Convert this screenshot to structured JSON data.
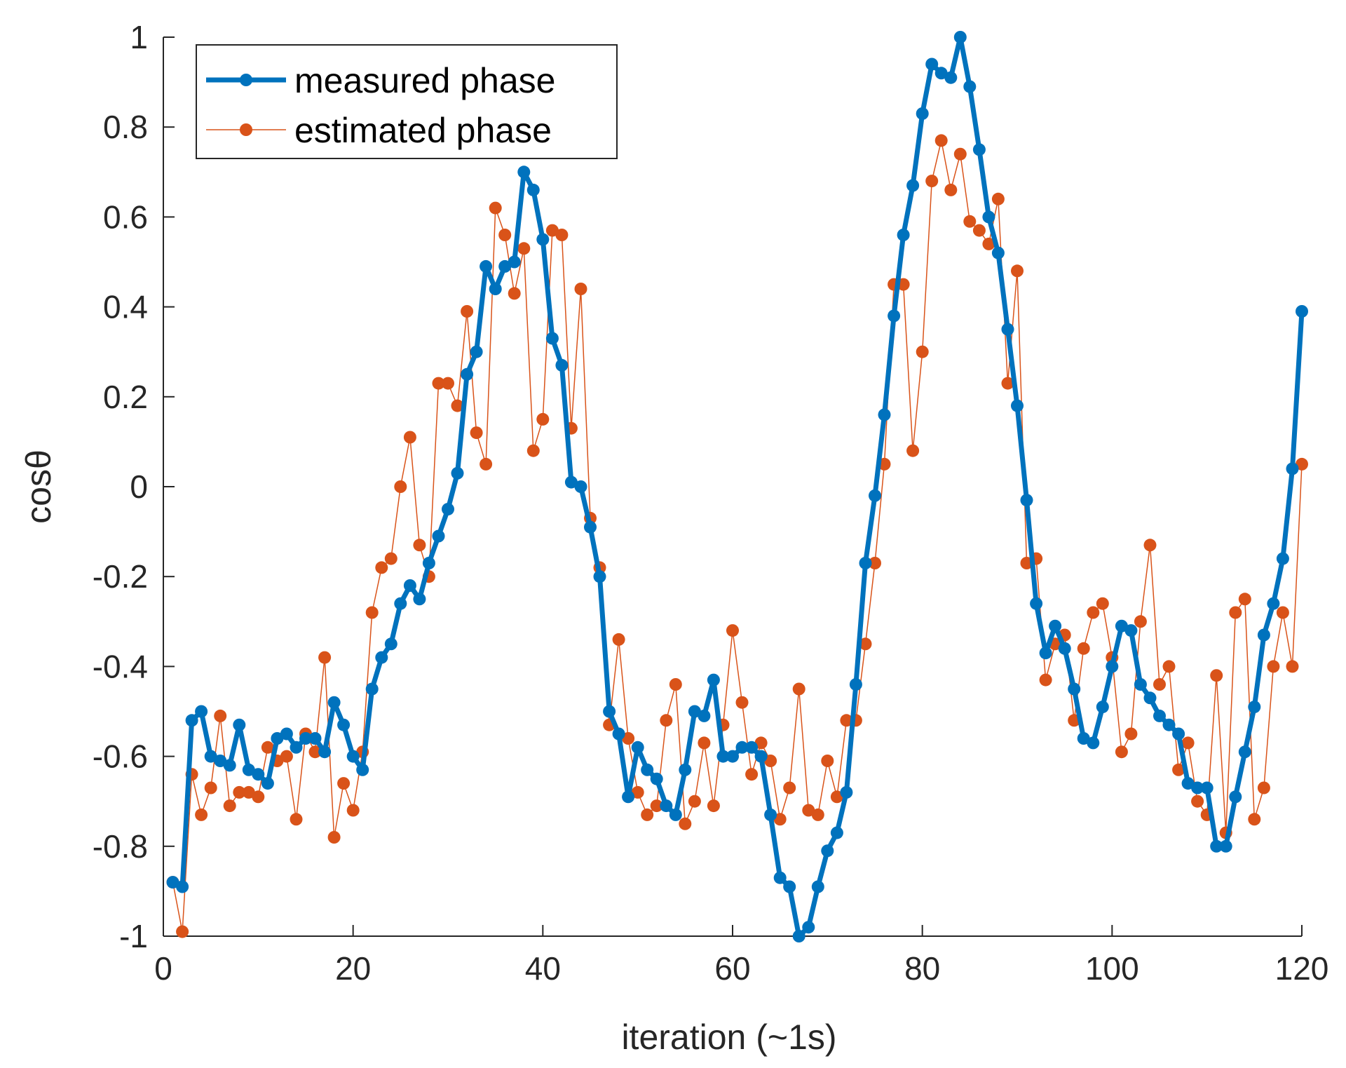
{
  "chart_data": {
    "type": "line",
    "xlabel": "iteration (~1s)",
    "ylabel": "cosθ",
    "xlim": [
      0,
      120
    ],
    "ylim": [
      -1,
      1
    ],
    "xticks": [
      0,
      20,
      40,
      60,
      80,
      100,
      120
    ],
    "yticks": [
      1,
      0.8,
      0.6,
      0.4,
      0.2,
      0,
      -0.2,
      -0.4,
      -0.6,
      -0.8,
      -1
    ],
    "xtick_labels": [
      "0",
      "20",
      "40",
      "60",
      "80",
      "100",
      "120"
    ],
    "ytick_labels": [
      "1",
      "0.8",
      "0.6",
      "0.4",
      "0.2",
      "0",
      "-0.2",
      "-0.4",
      "-0.6",
      "-0.8",
      "-1"
    ],
    "grid": false,
    "legend_position": "top-left",
    "x": [
      1,
      2,
      3,
      4,
      5,
      6,
      7,
      8,
      9,
      10,
      11,
      12,
      13,
      14,
      15,
      16,
      17,
      18,
      19,
      20,
      21,
      22,
      23,
      24,
      25,
      26,
      27,
      28,
      29,
      30,
      31,
      32,
      33,
      34,
      35,
      36,
      37,
      38,
      39,
      40,
      41,
      42,
      43,
      44,
      45,
      46,
      47,
      48,
      49,
      50,
      51,
      52,
      53,
      54,
      55,
      56,
      57,
      58,
      59,
      60,
      61,
      62,
      63,
      64,
      65,
      66,
      67,
      68,
      69,
      70,
      71,
      72,
      73,
      74,
      75,
      76,
      77,
      78,
      79,
      80,
      81,
      82,
      83,
      84,
      85,
      86,
      87,
      88,
      89,
      90,
      91,
      92,
      93,
      94,
      95,
      96,
      97,
      98,
      99,
      100,
      101,
      102,
      103,
      104,
      105,
      106,
      107,
      108,
      109,
      110,
      111,
      112,
      113,
      114,
      115,
      116,
      117,
      118,
      119,
      120
    ],
    "series": [
      {
        "name": "measured phase",
        "color": "#0072BD",
        "line_width": "thick",
        "values": [
          -0.88,
          -0.89,
          -0.52,
          -0.5,
          -0.6,
          -0.61,
          -0.62,
          -0.53,
          -0.63,
          -0.64,
          -0.66,
          -0.56,
          -0.55,
          -0.58,
          -0.56,
          -0.56,
          -0.59,
          -0.48,
          -0.53,
          -0.6,
          -0.63,
          -0.45,
          -0.38,
          -0.35,
          -0.26,
          -0.22,
          -0.25,
          -0.17,
          -0.11,
          -0.05,
          0.03,
          0.25,
          0.3,
          0.49,
          0.44,
          0.49,
          0.5,
          0.7,
          0.66,
          0.55,
          0.33,
          0.27,
          0.01,
          0.0,
          -0.09,
          -0.2,
          -0.5,
          -0.55,
          -0.69,
          -0.58,
          -0.63,
          -0.65,
          -0.71,
          -0.73,
          -0.63,
          -0.5,
          -0.51,
          -0.43,
          -0.6,
          -0.6,
          -0.58,
          -0.58,
          -0.6,
          -0.73,
          -0.87,
          -0.89,
          -1.0,
          -0.98,
          -0.89,
          -0.81,
          -0.77,
          -0.68,
          -0.44,
          -0.17,
          -0.02,
          0.16,
          0.38,
          0.56,
          0.67,
          0.83,
          0.94,
          0.92,
          0.91,
          1.0,
          0.89,
          0.75,
          0.6,
          0.52,
          0.35,
          0.18,
          -0.03,
          -0.26,
          -0.37,
          -0.31,
          -0.36,
          -0.45,
          -0.56,
          -0.57,
          -0.49,
          -0.4,
          -0.31,
          -0.32,
          -0.44,
          -0.47,
          -0.51,
          -0.53,
          -0.55,
          -0.66,
          -0.67,
          -0.67,
          -0.8,
          -0.8,
          -0.69,
          -0.59,
          -0.49,
          -0.33,
          -0.26,
          -0.16,
          0.04,
          0.39
        ]
      },
      {
        "name": "estimated phase",
        "color": "#D95319",
        "line_width": "thin",
        "values": [
          -0.88,
          -0.99,
          -0.64,
          -0.73,
          -0.67,
          -0.51,
          -0.71,
          -0.68,
          -0.68,
          -0.69,
          -0.58,
          -0.61,
          -0.6,
          -0.74,
          -0.55,
          -0.59,
          -0.38,
          -0.78,
          -0.66,
          -0.72,
          -0.59,
          -0.28,
          -0.18,
          -0.16,
          0.0,
          0.11,
          -0.13,
          -0.2,
          0.23,
          0.23,
          0.18,
          0.39,
          0.12,
          0.05,
          0.62,
          0.56,
          0.43,
          0.53,
          0.08,
          0.15,
          0.57,
          0.56,
          0.13,
          0.44,
          -0.07,
          -0.18,
          -0.53,
          -0.34,
          -0.56,
          -0.68,
          -0.73,
          -0.71,
          -0.52,
          -0.44,
          -0.75,
          -0.7,
          -0.57,
          -0.71,
          -0.53,
          -0.32,
          -0.48,
          -0.64,
          -0.57,
          -0.61,
          -0.74,
          -0.67,
          -0.45,
          -0.72,
          -0.73,
          -0.61,
          -0.69,
          -0.52,
          -0.52,
          -0.35,
          -0.17,
          0.05,
          0.45,
          0.45,
          0.08,
          0.3,
          0.68,
          0.77,
          0.66,
          0.74,
          0.59,
          0.57,
          0.54,
          0.64,
          0.23,
          0.48,
          -0.17,
          -0.16,
          -0.43,
          -0.35,
          -0.33,
          -0.52,
          -0.36,
          -0.28,
          -0.26,
          -0.38,
          -0.59,
          -0.55,
          -0.3,
          -0.13,
          -0.44,
          -0.4,
          -0.63,
          -0.57,
          -0.7,
          -0.73,
          -0.42,
          -0.77,
          -0.28,
          -0.25,
          -0.74,
          -0.67,
          -0.4,
          -0.28,
          -0.4,
          0.05
        ]
      }
    ]
  }
}
